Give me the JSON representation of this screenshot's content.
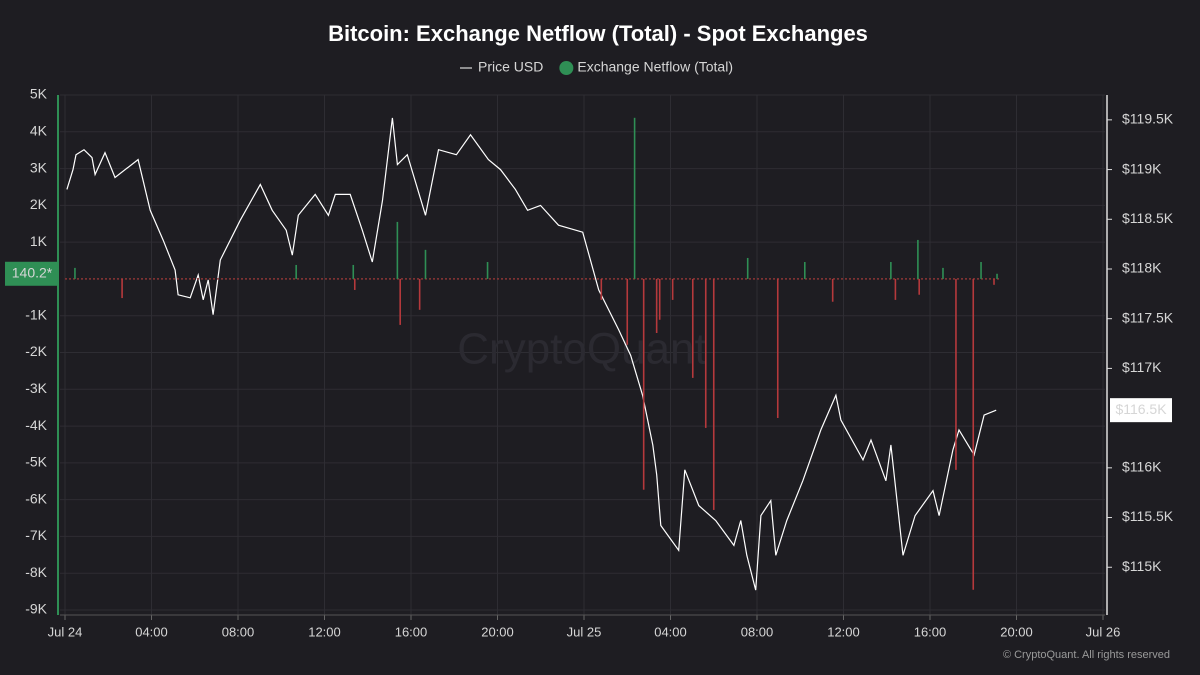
{
  "chart_data": {
    "type": "bar-line",
    "title": "Bitcoin: Exchange Netflow (Total) - Spot Exchanges",
    "watermark": "CryptoQuant",
    "footer": "© CryptoQuant. All rights reserved",
    "xlim": [
      0,
      48
    ],
    "xticks": [
      {
        "value": 0,
        "label": "Jul 24"
      },
      {
        "value": 4,
        "label": "04:00"
      },
      {
        "value": 8,
        "label": "08:00"
      },
      {
        "value": 12,
        "label": "12:00"
      },
      {
        "value": 16,
        "label": "16:00"
      },
      {
        "value": 20,
        "label": "20:00"
      },
      {
        "value": 24,
        "label": "Jul 25"
      },
      {
        "value": 28,
        "label": "04:00"
      },
      {
        "value": 32,
        "label": "08:00"
      },
      {
        "value": 36,
        "label": "12:00"
      },
      {
        "value": 40,
        "label": "16:00"
      },
      {
        "value": 44,
        "label": "20:00"
      },
      {
        "value": 48,
        "label": "Jul 26"
      }
    ],
    "ylim": [
      -9000,
      5000
    ],
    "yticks": [
      {
        "value": 5000,
        "label": "5K"
      },
      {
        "value": 4000,
        "label": "4K"
      },
      {
        "value": 3000,
        "label": "3K"
      },
      {
        "value": 2000,
        "label": "2K"
      },
      {
        "value": 1000,
        "label": "1K"
      },
      {
        "value": -1000,
        "label": "-1K"
      },
      {
        "value": -2000,
        "label": "-2K"
      },
      {
        "value": -3000,
        "label": "-3K"
      },
      {
        "value": -4000,
        "label": "-4K"
      },
      {
        "value": -5000,
        "label": "-5K"
      },
      {
        "value": -6000,
        "label": "-6K"
      },
      {
        "value": -7000,
        "label": "-7K"
      },
      {
        "value": -8000,
        "label": "-8K"
      },
      {
        "value": -9000,
        "label": "-9K"
      }
    ],
    "y2lim": [
      114570,
      119750
    ],
    "y2ticks": [
      {
        "value": 119500,
        "label": "$119.5K"
      },
      {
        "value": 119000,
        "label": "$119K"
      },
      {
        "value": 118500,
        "label": "$118.5K"
      },
      {
        "value": 118000,
        "label": "$118K"
      },
      {
        "value": 117500,
        "label": "$117.5K"
      },
      {
        "value": 117000,
        "label": "$117K"
      },
      {
        "value": 116000,
        "label": "$116K"
      },
      {
        "value": 115500,
        "label": "$115.5K"
      },
      {
        "value": 115000,
        "label": "$115K"
      }
    ],
    "grid": true,
    "series": [
      {
        "name": "Price USD",
        "type": "line",
        "axis": "y2",
        "color": "#ffffff",
        "last_label": "$116.5K",
        "x": [
          0.09,
          0.37,
          0.51,
          0.88,
          1.25,
          1.39,
          1.85,
          2.31,
          3.38,
          3.94,
          4.54,
          5.09,
          5.23,
          5.79,
          6.16,
          6.39,
          6.62,
          6.85,
          7.18,
          8.1,
          9.03,
          9.58,
          10.23,
          10.51,
          10.79,
          11.57,
          12.18,
          12.5,
          13.19,
          13.75,
          14.21,
          14.68,
          15.14,
          15.37,
          15.83,
          16.67,
          17.27,
          18.1,
          18.75,
          19.58,
          20.14,
          20.83,
          21.39,
          21.99,
          22.82,
          23.94,
          24.68,
          25.6,
          26.16,
          26.71,
          27.18,
          27.36,
          27.55,
          28.38,
          28.66,
          29.31,
          30.09,
          30.93,
          31.25,
          31.53,
          31.94,
          32.18,
          32.64,
          32.87,
          33.38,
          34.12,
          34.95,
          35.65,
          35.88,
          36.9,
          37.27,
          37.96,
          38.19,
          38.75,
          39.31,
          40.14,
          40.42,
          41.06,
          41.34,
          42.04,
          42.5,
          43.06
        ],
        "values": [
          118800,
          119000,
          119150,
          119200,
          119120,
          118950,
          119170,
          118920,
          119100,
          118590,
          118290,
          117990,
          117740,
          117710,
          117940,
          117690,
          117890,
          117540,
          118090,
          118490,
          118850,
          118590,
          118390,
          118140,
          118540,
          118750,
          118540,
          118750,
          118750,
          118390,
          118070,
          118690,
          119520,
          119050,
          119150,
          118540,
          119200,
          119150,
          119350,
          119100,
          119000,
          118800,
          118590,
          118640,
          118440,
          118370,
          117790,
          117390,
          117130,
          116730,
          116230,
          115930,
          115420,
          115170,
          115980,
          115620,
          115470,
          115220,
          115470,
          115120,
          114770,
          115520,
          115670,
          115120,
          115470,
          115870,
          116380,
          116730,
          116480,
          116080,
          116280,
          115870,
          116230,
          115120,
          115520,
          115770,
          115520,
          116180,
          116380,
          116130,
          116530,
          116580
        ]
      },
      {
        "name": "Exchange Netflow (Total)",
        "type": "bar",
        "axis": "y",
        "color": "#2f8f55",
        "negative_color": "#b5393c",
        "last_label": "140.2*",
        "x": [
          0.46,
          2.64,
          10.69,
          13.33,
          13.4,
          15.37,
          15.5,
          16.4,
          16.67,
          19.54,
          24.8,
          26.0,
          26.34,
          26.76,
          27.36,
          27.5,
          28.1,
          29.03,
          29.63,
          30.0,
          31.57,
          32.96,
          34.21,
          35.5,
          38.19,
          38.4,
          39.44,
          39.5,
          40.6,
          41.2,
          42.0,
          42.36,
          42.96,
          43.1
        ],
        "values": [
          300,
          -520,
          380,
          380,
          -300,
          1550,
          -1250,
          -840,
          790,
          460,
          -570,
          -1790,
          4380,
          -5730,
          -1470,
          -1110,
          -570,
          -2690,
          -4050,
          -6280,
          570,
          -3780,
          460,
          -620,
          460,
          -570,
          1060,
          -430,
          300,
          -5190,
          -8450,
          460,
          -160,
          140.2
        ]
      }
    ]
  }
}
